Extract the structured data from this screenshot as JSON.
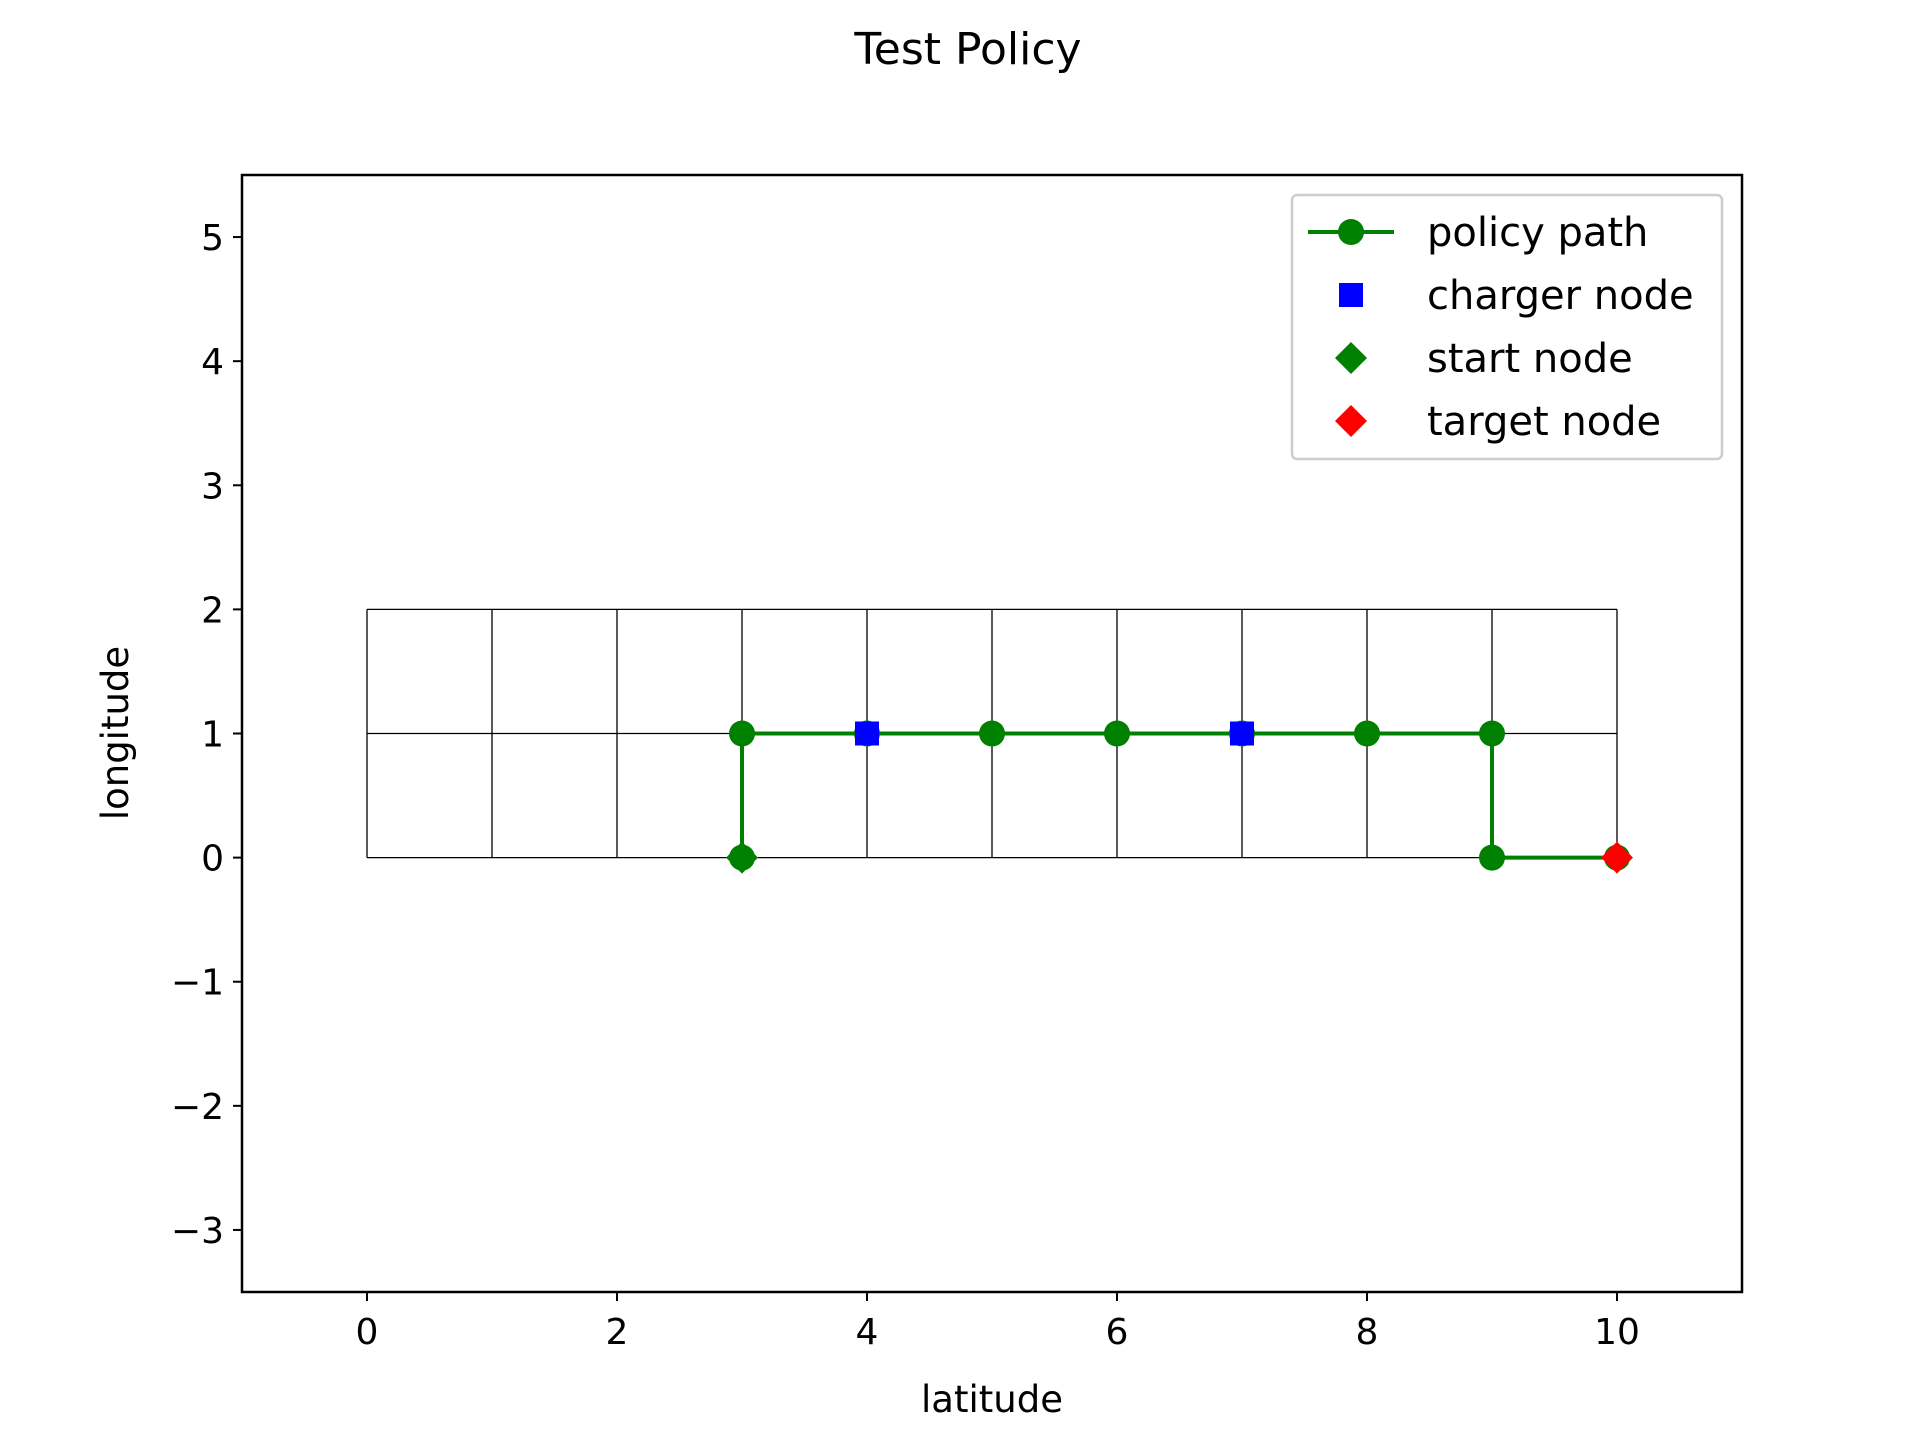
{
  "chart_data": {
    "type": "line",
    "title": "Test Policy",
    "xlabel": "latitude",
    "ylabel": "longitude",
    "xlim": [
      -1,
      11
    ],
    "ylim": [
      -3.5,
      5.5
    ],
    "xticks": [
      0,
      2,
      4,
      6,
      8,
      10
    ],
    "yticks": [
      -3,
      -2,
      -1,
      0,
      1,
      2,
      3,
      4,
      5
    ],
    "grid": {
      "x_range": [
        0,
        10
      ],
      "y_range": [
        0,
        2
      ],
      "step": 1,
      "color": "#000000"
    },
    "series": [
      {
        "name": "policy path",
        "marker": "circle",
        "line": true,
        "color": "#008000",
        "points": [
          [
            3,
            0
          ],
          [
            3,
            1
          ],
          [
            4,
            1
          ],
          [
            5,
            1
          ],
          [
            6,
            1
          ],
          [
            7,
            1
          ],
          [
            8,
            1
          ],
          [
            9,
            1
          ],
          [
            9,
            0
          ],
          [
            10,
            0
          ]
        ]
      },
      {
        "name": "charger node",
        "marker": "square",
        "line": false,
        "color": "#0000ff",
        "points": [
          [
            4,
            1
          ],
          [
            7,
            1
          ]
        ]
      },
      {
        "name": "start node",
        "marker": "diamond",
        "line": false,
        "color": "#008000",
        "points": [
          [
            3,
            0
          ]
        ]
      },
      {
        "name": "target node",
        "marker": "diamond",
        "line": false,
        "color": "#ff0000",
        "points": [
          [
            10,
            0
          ]
        ]
      }
    ],
    "legend": {
      "position": "upper right",
      "entries": [
        "policy path",
        "charger node",
        "start node",
        "target node"
      ]
    }
  }
}
